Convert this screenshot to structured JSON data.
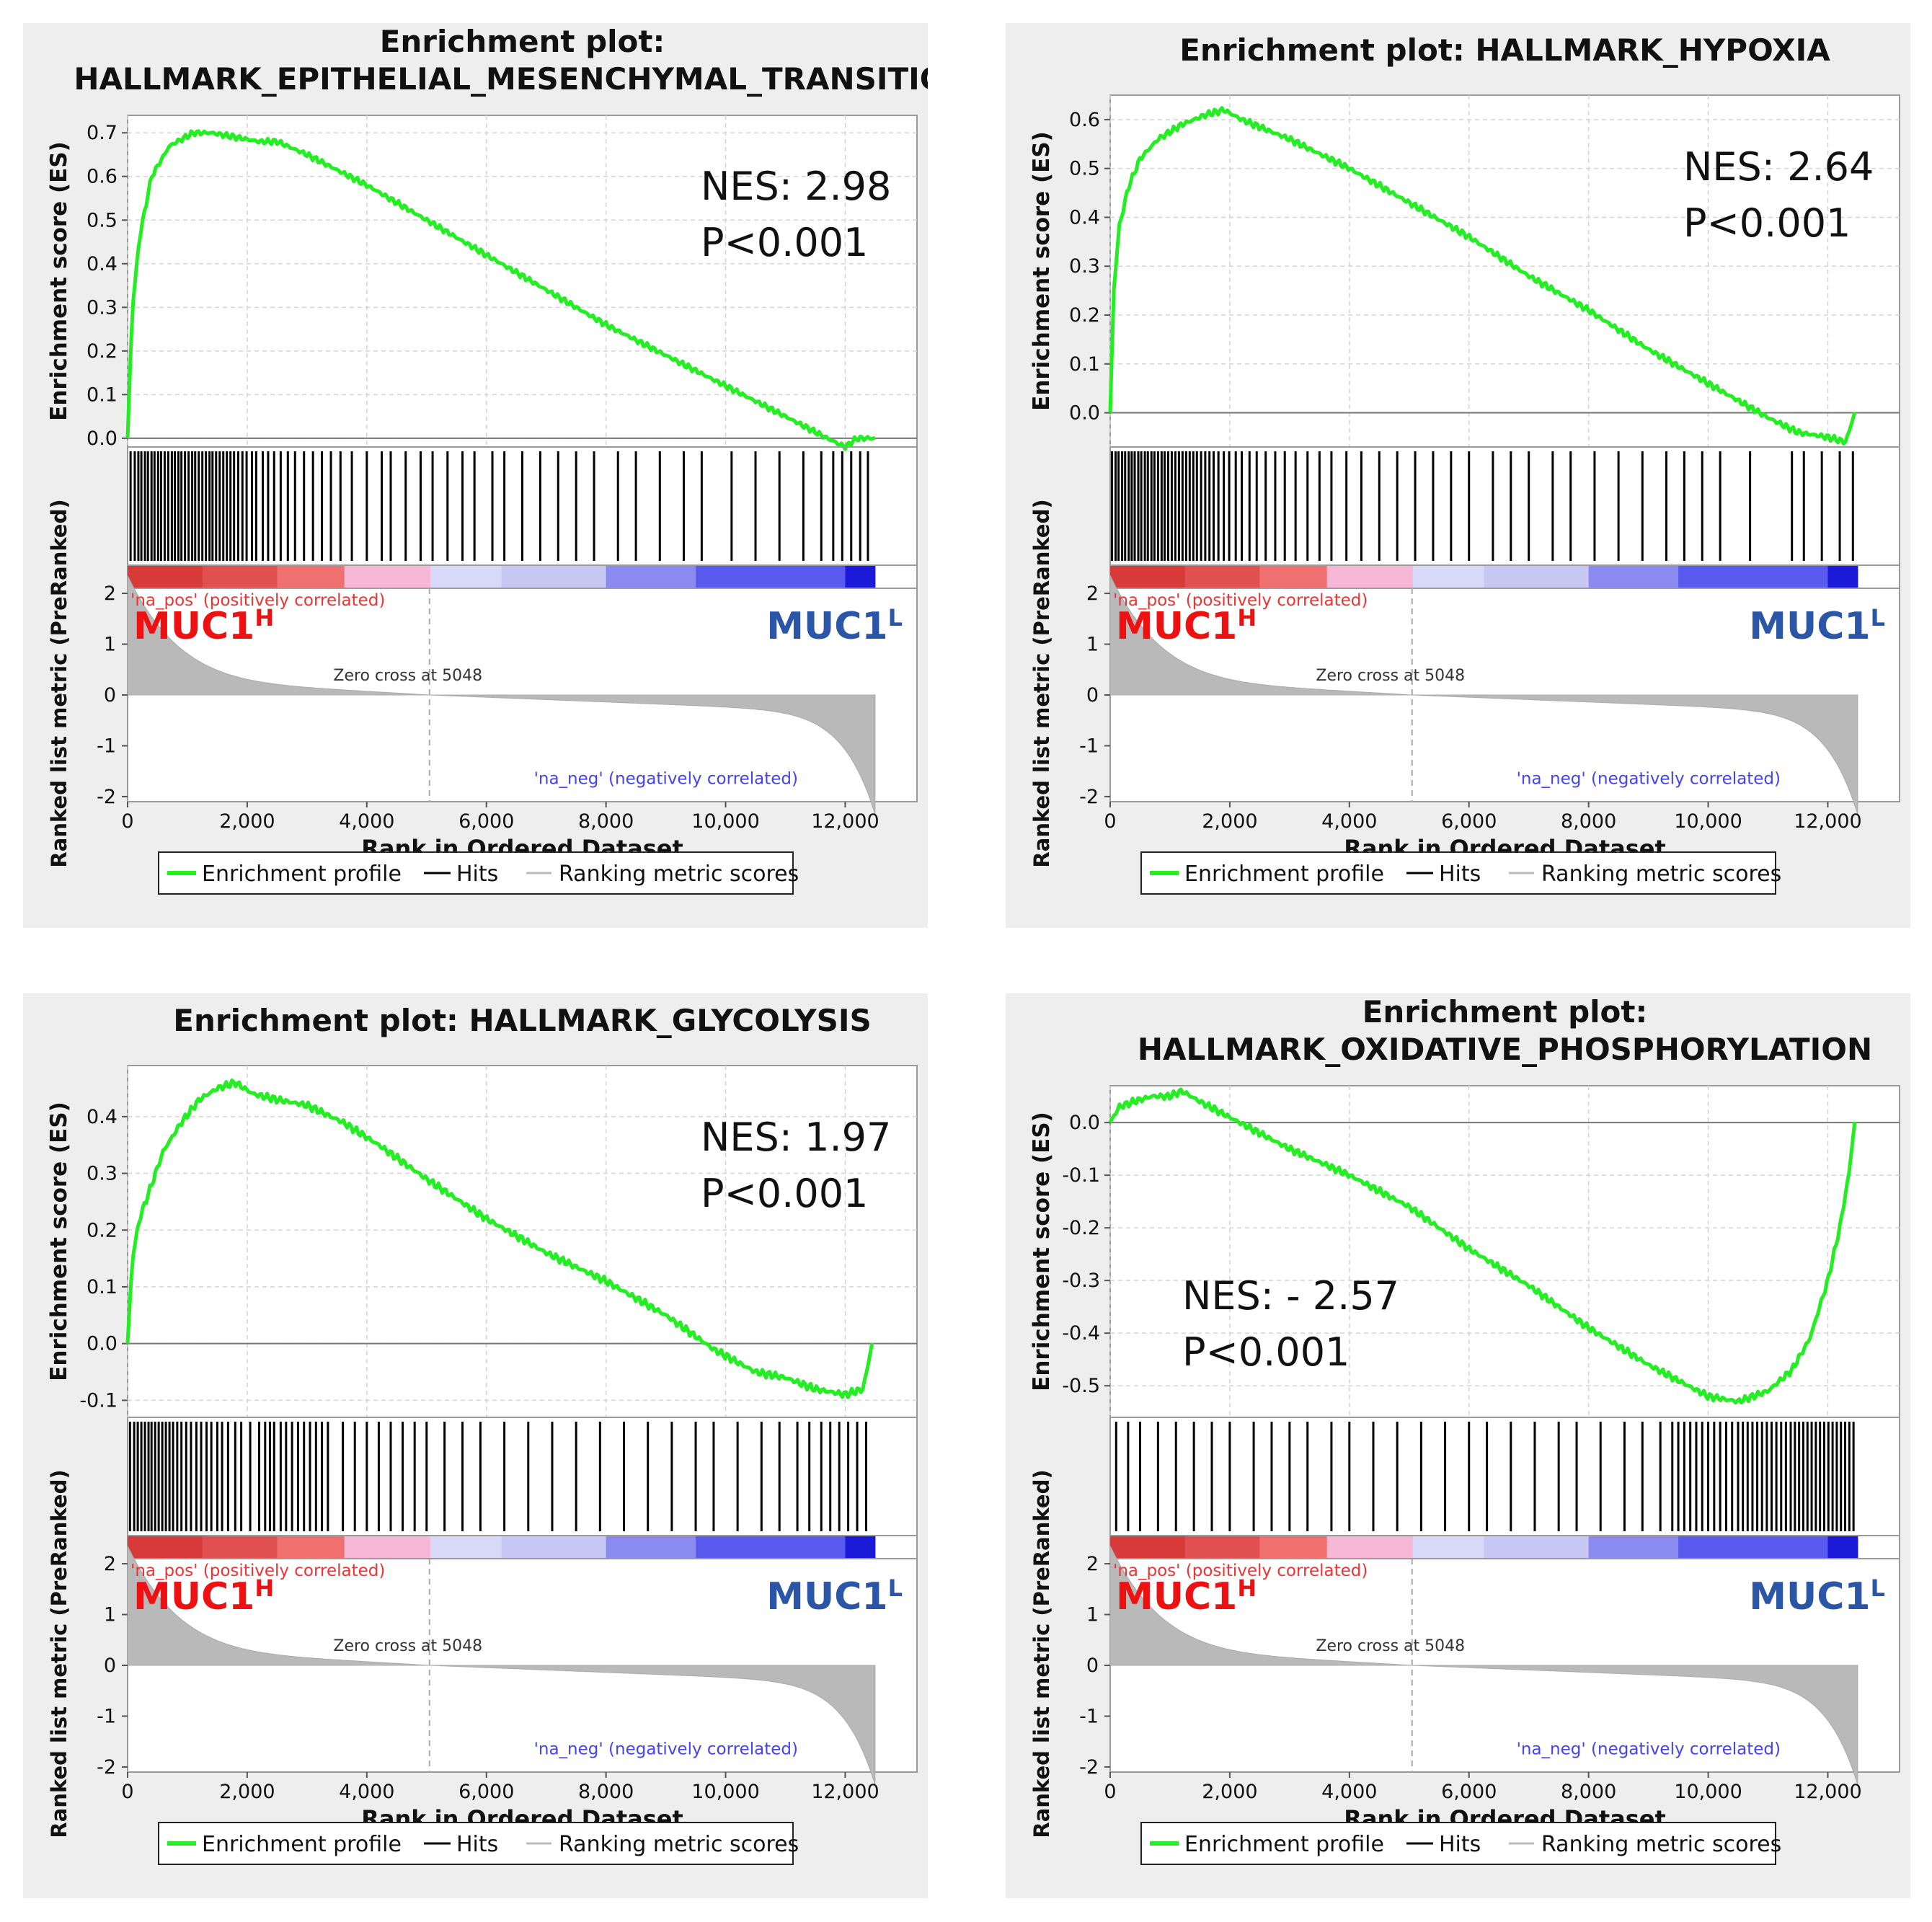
{
  "chart_data": [
    {
      "type": "line",
      "title_lines": [
        "Enrichment plot:",
        "HALLMARK_EPITHELIAL_MESENCHYMAL_TRANSITION"
      ],
      "ylabel": "Enrichment score (ES)",
      "ylim": [
        -0.02,
        0.74
      ],
      "yticks": [
        0.0,
        0.1,
        0.2,
        0.3,
        0.4,
        0.5,
        0.6,
        0.7
      ],
      "ytick_labels": [
        "0.0",
        "0.1",
        "0.2",
        "0.3",
        "0.4",
        "0.5",
        "0.6",
        "0.7"
      ],
      "es_curve": {
        "x": [
          0,
          80,
          200,
          400,
          700,
          1100,
          1400,
          1800,
          2200,
          2500,
          3000,
          4000,
          5000,
          6000,
          7000,
          8000,
          9000,
          10000,
          11000,
          11700,
          12000,
          12200,
          12500
        ],
        "y": [
          0,
          0.3,
          0.46,
          0.6,
          0.67,
          0.7,
          0.7,
          0.69,
          0.68,
          0.68,
          0.65,
          0.58,
          0.5,
          0.42,
          0.34,
          0.26,
          0.19,
          0.12,
          0.05,
          0.0,
          -0.02,
          0.0,
          0.0
        ]
      },
      "hits_rank": [
        50,
        120,
        180,
        230,
        290,
        340,
        400,
        450,
        510,
        560,
        620,
        680,
        740,
        790,
        850,
        900,
        960,
        1020,
        1080,
        1130,
        1190,
        1250,
        1310,
        1370,
        1420,
        1480,
        1540,
        1600,
        1660,
        1720,
        1780,
        1850,
        1920,
        1990,
        2080,
        2150,
        2260,
        2350,
        2450,
        2560,
        2680,
        2800,
        2950,
        3100,
        3250,
        3400,
        3560,
        3750,
        4000,
        4250,
        4400,
        4650,
        4900,
        5100,
        5350,
        5600,
        5800,
        6100,
        6300,
        6600,
        6900,
        7200,
        7500,
        7800,
        8200,
        8500,
        8900,
        9300,
        9600,
        10100,
        10500,
        10900,
        11300,
        11600,
        11800,
        11950,
        12100,
        12250,
        12380
      ],
      "nes_label": "NES: 2.98",
      "p_label": "P<0.001",
      "pos_label": "'na_pos' (positively correlated)",
      "neg_label": "'na_neg' (negatively correlated)",
      "muc_high": "MUC1",
      "muc_high_sup": "H",
      "muc_low": "MUC1",
      "muc_low_sup": "L",
      "zero_cross_label": "Zero cross at 5048",
      "zero_cross_rank": 5048,
      "metric_ylabel": "Ranked list metric (PreRanked)",
      "metric_ylim": [
        -2.1,
        2.1
      ],
      "metric_yticks": [
        "2",
        "1",
        "0",
        "-1",
        "-2"
      ],
      "xlabel": "Rank in Ordered Dataset",
      "xlim": [
        0,
        13200
      ],
      "xticks": [
        0,
        2000,
        4000,
        6000,
        8000,
        10000,
        12000
      ],
      "xtick_labels": [
        "0",
        "2,000",
        "4,000",
        "6,000",
        "8,000",
        "10,000",
        "12,000"
      ],
      "n_genes": 12500,
      "legend": [
        "Enrichment profile",
        "Hits",
        "Ranking metric scores"
      ]
    },
    {
      "type": "line",
      "title_lines": [
        "Enrichment plot: HALLMARK_HYPOXIA"
      ],
      "ylabel": "Enrichment score (ES)",
      "ylim": [
        -0.07,
        0.65
      ],
      "yticks": [
        0.0,
        0.1,
        0.2,
        0.3,
        0.4,
        0.5,
        0.6
      ],
      "ytick_labels": [
        "0.0",
        "0.1",
        "0.2",
        "0.3",
        "0.4",
        "0.5",
        "0.6"
      ],
      "es_curve": {
        "x": [
          0,
          60,
          150,
          300,
          500,
          800,
          1200,
          1600,
          1900,
          2200,
          2600,
          3000,
          4000,
          5000,
          6000,
          7000,
          8000,
          9000,
          10000,
          11000,
          11500,
          12000,
          12300,
          12450
        ],
        "y": [
          0,
          0.25,
          0.38,
          0.46,
          0.52,
          0.56,
          0.59,
          0.61,
          0.62,
          0.6,
          0.58,
          0.56,
          0.5,
          0.43,
          0.36,
          0.28,
          0.21,
          0.13,
          0.06,
          -0.01,
          -0.04,
          -0.05,
          -0.06,
          0.0
        ]
      },
      "hits_rank": [
        30,
        90,
        140,
        200,
        250,
        310,
        360,
        410,
        470,
        520,
        580,
        630,
        690,
        740,
        800,
        860,
        910,
        970,
        1030,
        1090,
        1150,
        1210,
        1270,
        1330,
        1390,
        1450,
        1520,
        1590,
        1660,
        1730,
        1810,
        1900,
        1990,
        2100,
        2200,
        2330,
        2450,
        2600,
        2760,
        2920,
        3100,
        3300,
        3500,
        3700,
        3950,
        4200,
        4500,
        4800,
        5100,
        5400,
        5700,
        6000,
        6400,
        6700,
        7000,
        7400,
        7700,
        8100,
        8500,
        8900,
        9300,
        9600,
        9900,
        10200,
        10700,
        11400,
        11600,
        11900,
        12200,
        12420
      ],
      "nes_label": "NES: 2.64",
      "p_label": "P<0.001",
      "pos_label": "'na_pos' (positively correlated)",
      "neg_label": "'na_neg' (negatively correlated)",
      "muc_high": "MUC1",
      "muc_high_sup": "H",
      "muc_low": "MUC1",
      "muc_low_sup": "L",
      "zero_cross_label": "Zero cross at 5048",
      "zero_cross_rank": 5048,
      "metric_ylabel": "Ranked list metric (PreRanked)",
      "metric_ylim": [
        -2.1,
        2.1
      ],
      "metric_yticks": [
        "2",
        "1",
        "0",
        "-1",
        "-2"
      ],
      "xlabel": "Rank in Ordered Dataset",
      "xlim": [
        0,
        13200
      ],
      "xticks": [
        0,
        2000,
        4000,
        6000,
        8000,
        10000,
        12000
      ],
      "xtick_labels": [
        "0",
        "2,000",
        "4,000",
        "6,000",
        "8,000",
        "10,000",
        "12,000"
      ],
      "n_genes": 12500,
      "legend": [
        "Enrichment profile",
        "Hits",
        "Ranking metric scores"
      ]
    },
    {
      "type": "line",
      "title_lines": [
        "Enrichment plot: HALLMARK_GLYCOLYSIS"
      ],
      "ylabel": "Enrichment score (ES)",
      "ylim": [
        -0.13,
        0.49
      ],
      "yticks": [
        -0.1,
        0.0,
        0.1,
        0.2,
        0.3,
        0.4
      ],
      "ytick_labels": [
        "-0.1",
        "0.0",
        "0.1",
        "0.2",
        "0.3",
        "0.4"
      ],
      "es_curve": {
        "x": [
          0,
          80,
          200,
          400,
          600,
          900,
          1200,
          1500,
          1800,
          2100,
          2500,
          3000,
          3600,
          4200,
          5000,
          6000,
          7000,
          8000,
          9000,
          9800,
          10500,
          11000,
          11500,
          12000,
          12300,
          12450
        ],
        "y": [
          0,
          0.15,
          0.22,
          0.28,
          0.34,
          0.39,
          0.43,
          0.45,
          0.46,
          0.44,
          0.43,
          0.42,
          0.39,
          0.35,
          0.29,
          0.22,
          0.16,
          0.11,
          0.05,
          -0.01,
          -0.05,
          -0.06,
          -0.08,
          -0.09,
          -0.08,
          0.0
        ]
      },
      "hits_rank": [
        40,
        110,
        170,
        230,
        290,
        350,
        400,
        460,
        520,
        580,
        640,
        700,
        760,
        830,
        900,
        980,
        1060,
        1150,
        1230,
        1320,
        1400,
        1500,
        1580,
        1680,
        1800,
        1900,
        2050,
        2200,
        2300,
        2380,
        2450,
        2560,
        2650,
        2750,
        2850,
        2950,
        3050,
        3150,
        3250,
        3350,
        3600,
        3800,
        4000,
        4200,
        4400,
        4600,
        4800,
        5000,
        5300,
        5600,
        5900,
        6300,
        6700,
        7100,
        7500,
        7900,
        8300,
        8700,
        9100,
        9500,
        9800,
        10200,
        10600,
        10900,
        11200,
        11400,
        11600,
        11750,
        11900,
        12050,
        12200,
        12350
      ],
      "nes_label": "NES: 1.97",
      "p_label": "P<0.001",
      "pos_label": "'na_pos' (positively correlated)",
      "neg_label": "'na_neg' (negatively correlated)",
      "muc_high": "MUC1",
      "muc_high_sup": "H",
      "muc_low": "MUC1",
      "muc_low_sup": "L",
      "zero_cross_label": "Zero cross at 5048",
      "zero_cross_rank": 5048,
      "metric_ylabel": "Ranked list metric (PreRanked)",
      "metric_ylim": [
        -2.1,
        2.1
      ],
      "metric_yticks": [
        "2",
        "1",
        "0",
        "-1",
        "-2"
      ],
      "xlabel": "Rank in Ordered Dataset",
      "xlim": [
        0,
        13200
      ],
      "xticks": [
        0,
        2000,
        4000,
        6000,
        8000,
        10000,
        12000
      ],
      "xtick_labels": [
        "0",
        "2,000",
        "4,000",
        "6,000",
        "8,000",
        "10,000",
        "12,000"
      ],
      "n_genes": 12500,
      "legend": [
        "Enrichment profile",
        "Hits",
        "Ranking metric scores"
      ]
    },
    {
      "type": "line",
      "title_lines": [
        "Enrichment plot:",
        "HALLMARK_OXIDATIVE_PHOSPHORYLATION"
      ],
      "ylabel": "Enrichment score (ES)",
      "ylim": [
        -0.56,
        0.07
      ],
      "yticks": [
        0.0,
        -0.1,
        -0.2,
        -0.3,
        -0.4,
        -0.5
      ],
      "ytick_labels": [
        "0.0",
        "-0.1",
        "-0.2",
        "-0.3",
        "-0.4",
        "-0.5"
      ],
      "es_curve": {
        "x": [
          0,
          150,
          400,
          700,
          1000,
          1200,
          1500,
          2000,
          3000,
          4000,
          5000,
          6000,
          7000,
          8000,
          9000,
          10000,
          10500,
          11000,
          11400,
          11700,
          12000,
          12200,
          12350,
          12450
        ],
        "y": [
          0,
          0.03,
          0.04,
          0.05,
          0.05,
          0.06,
          0.04,
          0.01,
          -0.05,
          -0.1,
          -0.16,
          -0.24,
          -0.31,
          -0.39,
          -0.46,
          -0.52,
          -0.53,
          -0.51,
          -0.47,
          -0.41,
          -0.3,
          -0.2,
          -0.1,
          0.0
        ]
      },
      "hits_rank": [
        100,
        300,
        500,
        800,
        1100,
        1400,
        1700,
        2000,
        2400,
        2700,
        3000,
        3300,
        3700,
        4000,
        4400,
        4800,
        5200,
        5600,
        6000,
        6300,
        6700,
        7100,
        7500,
        7800,
        8200,
        8600,
        8900,
        9200,
        9400,
        9500,
        9600,
        9700,
        9800,
        9900,
        10000,
        10100,
        10200,
        10300,
        10400,
        10500,
        10580,
        10660,
        10740,
        10820,
        10900,
        10980,
        11060,
        11140,
        11220,
        11300,
        11380,
        11450,
        11520,
        11590,
        11660,
        11730,
        11800,
        11870,
        11940,
        12010,
        12080,
        12150,
        12220,
        12290,
        12360,
        12430
      ],
      "nes_label": "NES: - 2.57",
      "p_label": "P<0.001",
      "pos_label": "'na_pos' (positively correlated)",
      "neg_label": "'na_neg' (negatively correlated)",
      "muc_high": "MUC1",
      "muc_high_sup": "H",
      "muc_low": "MUC1",
      "muc_low_sup": "L",
      "zero_cross_label": "Zero cross at 5048",
      "zero_cross_rank": 5048,
      "metric_ylabel": "Ranked list metric (PreRanked)",
      "metric_ylim": [
        -2.1,
        2.1
      ],
      "metric_yticks": [
        "2",
        "1",
        "0",
        "-1",
        "-2"
      ],
      "xlabel": "Rank in Ordered Dataset",
      "xlim": [
        0,
        13200
      ],
      "xticks": [
        0,
        2000,
        4000,
        6000,
        8000,
        10000,
        12000
      ],
      "xtick_labels": [
        "0",
        "2,000",
        "4,000",
        "6,000",
        "8,000",
        "10,000",
        "12,000"
      ],
      "n_genes": 12500,
      "legend": [
        "Enrichment profile",
        "Hits",
        "Ranking metric scores"
      ]
    }
  ],
  "colors": {
    "panel_bg": "#eeeeee",
    "plot_bg": "#ffffff",
    "es_line": "#22ee22",
    "hits": "#000000",
    "metric_fill": "#b9b9b9",
    "pos_text": "#ee3333",
    "neg_text": "#4444ee",
    "muc_high": "#ee1111",
    "muc_low": "#2b55a6",
    "grid": "#d4d4d4"
  }
}
